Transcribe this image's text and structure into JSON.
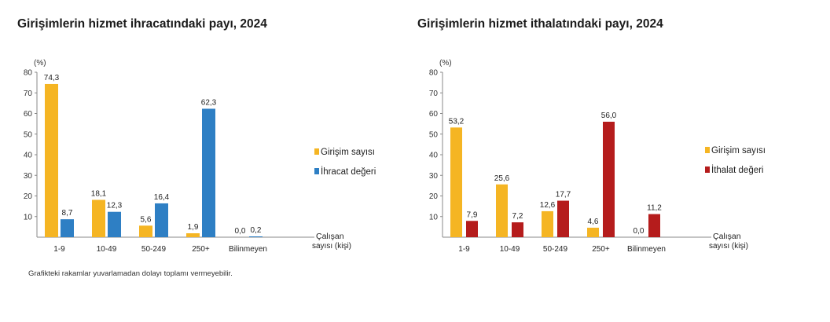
{
  "footnote": "Grafikteki rakamlar yuvarlamadan dolayı toplamı vermeyebilir.",
  "chart_data": [
    {
      "type": "bar",
      "title": "Girişimlerin hizmet ihracatındaki payı, 2024",
      "unit_label": "(%)",
      "xlabel_line1": "Çalışan",
      "xlabel_line2": "sayısı (kişi)",
      "ylim": [
        0,
        80
      ],
      "yticks": [
        "80",
        "70",
        "60",
        "50",
        "40",
        "30",
        "20",
        "10"
      ],
      "categories": [
        "1-9",
        "10-49",
        "50-249",
        "250+",
        "Bilinmeyen"
      ],
      "series": [
        {
          "name": "Girişim sayısı",
          "color": "#F5B523",
          "values": [
            74.3,
            18.1,
            5.6,
            1.9,
            0.0
          ],
          "labels": [
            "74,3",
            "18,1",
            "5,6",
            "1,9",
            "0,0"
          ]
        },
        {
          "name": "İhracat değeri",
          "color": "#2E7FC4",
          "values": [
            8.7,
            12.3,
            16.4,
            62.3,
            0.2
          ],
          "labels": [
            "8,7",
            "12,3",
            "16,4",
            "62,3",
            "0,2"
          ]
        }
      ],
      "legend_position": "right"
    },
    {
      "type": "bar",
      "title": "Girişimlerin hizmet ithalatındaki payı, 2024",
      "unit_label": "(%)",
      "xlabel_line1": "Çalışan",
      "xlabel_line2": "sayısı (kişi)",
      "ylim": [
        0,
        80
      ],
      "yticks": [
        "80",
        "70",
        "60",
        "50",
        "40",
        "30",
        "20",
        "10"
      ],
      "categories": [
        "1-9",
        "10-49",
        "50-249",
        "250+",
        "Bilinmeyen"
      ],
      "series": [
        {
          "name": "Girişim sayısı",
          "color": "#F5B523",
          "values": [
            53.2,
            25.6,
            12.6,
            4.6,
            0.0
          ],
          "labels": [
            "53,2",
            "25,6",
            "12,6",
            "4,6",
            "0,0"
          ]
        },
        {
          "name": "İthalat değeri",
          "color": "#B51C1C",
          "values": [
            7.9,
            7.2,
            17.7,
            56.0,
            11.2
          ],
          "labels": [
            "7,9",
            "7,2",
            "17,7",
            "56,0",
            "11,2"
          ]
        }
      ],
      "legend_position": "right"
    }
  ]
}
